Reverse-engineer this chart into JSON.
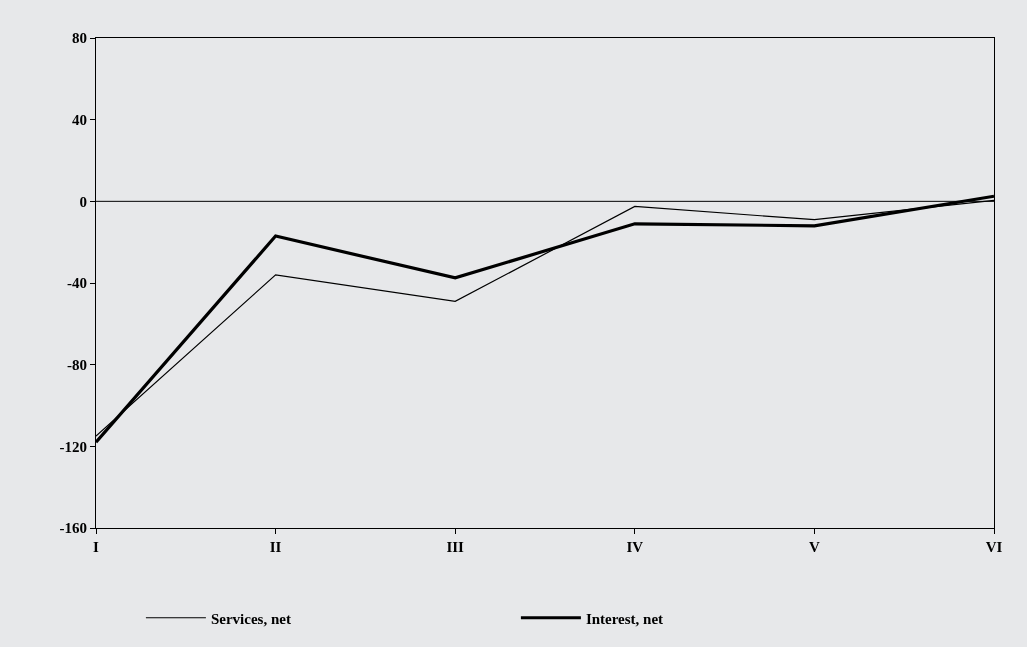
{
  "chart_data": {
    "type": "line",
    "categories": [
      "I",
      "II",
      "III",
      "IV",
      "V",
      "VI"
    ],
    "series": [
      {
        "name": "Services, net",
        "color": "#000000",
        "values": [
          -115,
          -36,
          -49,
          -2.5,
          -9,
          0.5
        ]
      },
      {
        "name": "Interest, net",
        "color": "#000000",
        "values": [
          -118,
          -17,
          -37.5,
          -11,
          -12,
          2.5
        ]
      }
    ],
    "ylim": [
      -160,
      80
    ],
    "yticks": [
      -160,
      -120,
      -80,
      -40,
      0,
      40,
      80
    ],
    "ref_lines": [
      {
        "axis": "y",
        "value": 0,
        "color": "#000000"
      }
    ],
    "grid": false,
    "legend": "bottom",
    "marker": "none",
    "line_style": "solid"
  }
}
